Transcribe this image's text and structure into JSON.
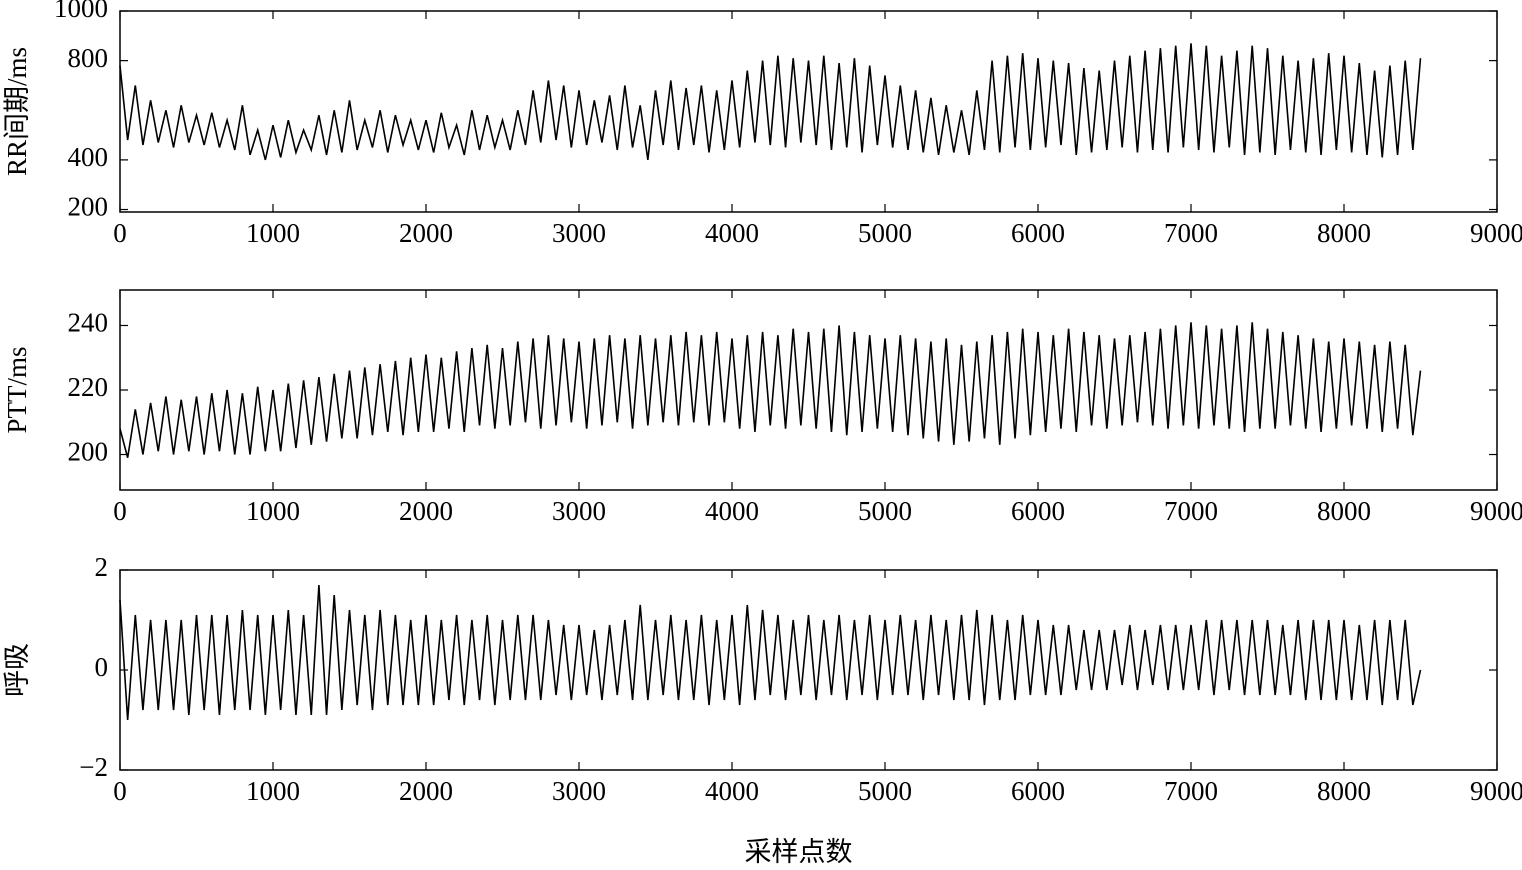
{
  "chart_data": [
    {
      "type": "line",
      "ylabel": "RR间期/ms",
      "color": "#000000",
      "x": [
        0,
        50,
        100,
        150,
        200,
        250,
        300,
        350,
        400,
        450,
        500,
        550,
        600,
        650,
        700,
        750,
        800,
        850,
        900,
        950,
        1000,
        1050,
        1100,
        1150,
        1200,
        1250,
        1300,
        1350,
        1400,
        1450,
        1500,
        1550,
        1600,
        1650,
        1700,
        1750,
        1800,
        1850,
        1900,
        1950,
        2000,
        2050,
        2100,
        2150,
        2200,
        2250,
        2300,
        2350,
        2400,
        2450,
        2500,
        2550,
        2600,
        2650,
        2700,
        2750,
        2800,
        2850,
        2900,
        2950,
        3000,
        3050,
        3100,
        3150,
        3200,
        3250,
        3300,
        3350,
        3400,
        3450,
        3500,
        3550,
        3600,
        3650,
        3700,
        3750,
        3800,
        3850,
        3900,
        3950,
        4000,
        4050,
        4100,
        4150,
        4200,
        4250,
        4300,
        4350,
        4400,
        4450,
        4500,
        4550,
        4600,
        4650,
        4700,
        4750,
        4800,
        4850,
        4900,
        4950,
        5000,
        5050,
        5100,
        5150,
        5200,
        5250,
        5300,
        5350,
        5400,
        5450,
        5500,
        5550,
        5600,
        5650,
        5700,
        5750,
        5800,
        5850,
        5900,
        5950,
        6000,
        6050,
        6100,
        6150,
        6200,
        6250,
        6300,
        6350,
        6400,
        6450,
        6500,
        6550,
        6600,
        6650,
        6700,
        6750,
        6800,
        6850,
        6900,
        6950,
        7000,
        7050,
        7100,
        7150,
        7200,
        7250,
        7300,
        7350,
        7400,
        7450,
        7500,
        7550,
        7600,
        7650,
        7700,
        7750,
        7800,
        7850,
        7900,
        7950,
        8000,
        8050,
        8100,
        8150,
        8200,
        8250,
        8300,
        8350,
        8400,
        8450,
        8500
      ],
      "values": [
        780,
        480,
        700,
        460,
        640,
        470,
        600,
        450,
        620,
        470,
        580,
        460,
        590,
        450,
        560,
        440,
        620,
        420,
        520,
        400,
        540,
        410,
        560,
        430,
        520,
        440,
        580,
        420,
        600,
        430,
        640,
        440,
        560,
        450,
        600,
        430,
        580,
        460,
        560,
        440,
        560,
        430,
        590,
        450,
        540,
        420,
        600,
        440,
        580,
        450,
        560,
        440,
        600,
        460,
        680,
        470,
        720,
        480,
        700,
        450,
        680,
        460,
        640,
        470,
        660,
        440,
        700,
        450,
        620,
        400,
        680,
        460,
        720,
        440,
        690,
        460,
        700,
        430,
        680,
        440,
        720,
        450,
        760,
        470,
        800,
        460,
        820,
        450,
        810,
        470,
        800,
        460,
        820,
        440,
        790,
        450,
        810,
        430,
        780,
        460,
        740,
        450,
        700,
        440,
        680,
        430,
        650,
        420,
        620,
        430,
        600,
        420,
        680,
        440,
        800,
        430,
        820,
        450,
        830,
        440,
        810,
        450,
        800,
        460,
        790,
        420,
        770,
        430,
        760,
        440,
        800,
        450,
        820,
        430,
        840,
        440,
        850,
        430,
        860,
        450,
        870,
        440,
        860,
        430,
        820,
        450,
        840,
        420,
        860,
        430,
        850,
        420,
        820,
        440,
        800,
        430,
        810,
        420,
        830,
        440,
        820,
        430,
        790,
        420,
        760,
        410,
        780,
        420,
        800,
        440,
        810
      ],
      "xlim": [
        0,
        9000
      ],
      "xticks": [
        0,
        1000,
        2000,
        3000,
        4000,
        5000,
        6000,
        7000,
        8000,
        9000
      ],
      "ylim": [
        190,
        1000
      ],
      "yticks": [
        200,
        400,
        800,
        1000
      ]
    },
    {
      "type": "line",
      "ylabel": "PTT/ms",
      "color": "#000000",
      "x": [
        0,
        50,
        100,
        150,
        200,
        250,
        300,
        350,
        400,
        450,
        500,
        550,
        600,
        650,
        700,
        750,
        800,
        850,
        900,
        950,
        1000,
        1050,
        1100,
        1150,
        1200,
        1250,
        1300,
        1350,
        1400,
        1450,
        1500,
        1550,
        1600,
        1650,
        1700,
        1750,
        1800,
        1850,
        1900,
        1950,
        2000,
        2050,
        2100,
        2150,
        2200,
        2250,
        2300,
        2350,
        2400,
        2450,
        2500,
        2550,
        2600,
        2650,
        2700,
        2750,
        2800,
        2850,
        2900,
        2950,
        3000,
        3050,
        3100,
        3150,
        3200,
        3250,
        3300,
        3350,
        3400,
        3450,
        3500,
        3550,
        3600,
        3650,
        3700,
        3750,
        3800,
        3850,
        3900,
        3950,
        4000,
        4050,
        4100,
        4150,
        4200,
        4250,
        4300,
        4350,
        4400,
        4450,
        4500,
        4550,
        4600,
        4650,
        4700,
        4750,
        4800,
        4850,
        4900,
        4950,
        5000,
        5050,
        5100,
        5150,
        5200,
        5250,
        5300,
        5350,
        5400,
        5450,
        5500,
        5550,
        5600,
        5650,
        5700,
        5750,
        5800,
        5850,
        5900,
        5950,
        6000,
        6050,
        6100,
        6150,
        6200,
        6250,
        6300,
        6350,
        6400,
        6450,
        6500,
        6550,
        6600,
        6650,
        6700,
        6750,
        6800,
        6850,
        6900,
        6950,
        7000,
        7050,
        7100,
        7150,
        7200,
        7250,
        7300,
        7350,
        7400,
        7450,
        7500,
        7550,
        7600,
        7650,
        7700,
        7750,
        7800,
        7850,
        7900,
        7950,
        8000,
        8050,
        8100,
        8150,
        8200,
        8250,
        8300,
        8350,
        8400,
        8450,
        8500
      ],
      "values": [
        208,
        199,
        214,
        200,
        216,
        201,
        218,
        200,
        217,
        201,
        218,
        200,
        219,
        201,
        220,
        200,
        219,
        200,
        221,
        201,
        220,
        201,
        222,
        202,
        223,
        203,
        224,
        204,
        225,
        205,
        226,
        205,
        227,
        206,
        228,
        207,
        229,
        206,
        230,
        207,
        231,
        207,
        230,
        208,
        232,
        207,
        233,
        209,
        234,
        208,
        233,
        209,
        235,
        210,
        236,
        208,
        237,
        209,
        236,
        210,
        235,
        208,
        236,
        209,
        237,
        210,
        236,
        208,
        237,
        209,
        236,
        210,
        237,
        209,
        238,
        210,
        237,
        209,
        238,
        210,
        236,
        208,
        237,
        207,
        238,
        209,
        237,
        208,
        239,
        209,
        238,
        208,
        239,
        207,
        240,
        206,
        238,
        207,
        237,
        208,
        236,
        207,
        237,
        206,
        236,
        205,
        235,
        204,
        236,
        203,
        234,
        204,
        235,
        205,
        237,
        203,
        238,
        205,
        239,
        206,
        238,
        207,
        237,
        208,
        239,
        207,
        238,
        209,
        237,
        208,
        236,
        209,
        237,
        210,
        238,
        209,
        239,
        208,
        240,
        209,
        241,
        208,
        240,
        209,
        239,
        208,
        240,
        207,
        241,
        208,
        239,
        208,
        238,
        209,
        237,
        208,
        236,
        207,
        235,
        208,
        236,
        209,
        235,
        208,
        234,
        207,
        235,
        208,
        234,
        206,
        226
      ],
      "xlim": [
        0,
        9000
      ],
      "xticks": [
        0,
        1000,
        2000,
        3000,
        4000,
        5000,
        6000,
        7000,
        8000,
        9000
      ],
      "ylim": [
        189,
        251
      ],
      "yticks": [
        200,
        220,
        240
      ]
    },
    {
      "type": "line",
      "ylabel": "呼吸",
      "xlabel": "采样点数",
      "color": "#000000",
      "x": [
        0,
        50,
        100,
        150,
        200,
        250,
        300,
        350,
        400,
        450,
        500,
        550,
        600,
        650,
        700,
        750,
        800,
        850,
        900,
        950,
        1000,
        1050,
        1100,
        1150,
        1200,
        1250,
        1300,
        1350,
        1400,
        1450,
        1500,
        1550,
        1600,
        1650,
        1700,
        1750,
        1800,
        1850,
        1900,
        1950,
        2000,
        2050,
        2100,
        2150,
        2200,
        2250,
        2300,
        2350,
        2400,
        2450,
        2500,
        2550,
        2600,
        2650,
        2700,
        2750,
        2800,
        2850,
        2900,
        2950,
        3000,
        3050,
        3100,
        3150,
        3200,
        3250,
        3300,
        3350,
        3400,
        3450,
        3500,
        3550,
        3600,
        3650,
        3700,
        3750,
        3800,
        3850,
        3900,
        3950,
        4000,
        4050,
        4100,
        4150,
        4200,
        4250,
        4300,
        4350,
        4400,
        4450,
        4500,
        4550,
        4600,
        4650,
        4700,
        4750,
        4800,
        4850,
        4900,
        4950,
        5000,
        5050,
        5100,
        5150,
        5200,
        5250,
        5300,
        5350,
        5400,
        5450,
        5500,
        5550,
        5600,
        5650,
        5700,
        5750,
        5800,
        5850,
        5900,
        5950,
        6000,
        6050,
        6100,
        6150,
        6200,
        6250,
        6300,
        6350,
        6400,
        6450,
        6500,
        6550,
        6600,
        6650,
        6700,
        6750,
        6800,
        6850,
        6900,
        6950,
        7000,
        7050,
        7100,
        7150,
        7200,
        7250,
        7300,
        7350,
        7400,
        7450,
        7500,
        7550,
        7600,
        7650,
        7700,
        7750,
        7800,
        7850,
        7900,
        7950,
        8000,
        8050,
        8100,
        8150,
        8200,
        8250,
        8300,
        8350,
        8400,
        8450,
        8500
      ],
      "values": [
        1.4,
        -1.0,
        1.1,
        -0.8,
        1.0,
        -0.8,
        1.0,
        -0.8,
        1.0,
        -0.9,
        1.1,
        -0.8,
        1.1,
        -0.9,
        1.1,
        -0.8,
        1.2,
        -0.8,
        1.1,
        -0.9,
        1.1,
        -0.8,
        1.2,
        -0.9,
        1.1,
        -0.9,
        1.7,
        -0.9,
        1.5,
        -0.8,
        1.2,
        -0.7,
        1.1,
        -0.8,
        1.2,
        -0.7,
        1.1,
        -0.7,
        1.0,
        -0.7,
        1.1,
        -0.7,
        1.0,
        -0.6,
        1.1,
        -0.7,
        1.0,
        -0.6,
        1.1,
        -0.7,
        1.0,
        -0.6,
        1.1,
        -0.6,
        1.1,
        -0.6,
        1.0,
        -0.5,
        0.9,
        -0.6,
        0.9,
        -0.5,
        0.8,
        -0.6,
        0.9,
        -0.5,
        1.0,
        -0.6,
        1.3,
        -0.6,
        1.0,
        -0.5,
        1.1,
        -0.6,
        1.0,
        -0.6,
        1.1,
        -0.7,
        1.0,
        -0.6,
        1.1,
        -0.7,
        1.3,
        -0.6,
        1.2,
        -0.5,
        1.1,
        -0.6,
        1.0,
        -0.5,
        1.1,
        -0.6,
        1.0,
        -0.5,
        1.1,
        -0.6,
        1.0,
        -0.5,
        1.1,
        -0.6,
        1.0,
        -0.5,
        1.1,
        -0.5,
        1.0,
        -0.6,
        1.1,
        -0.5,
        1.0,
        -0.6,
        1.1,
        -0.6,
        1.2,
        -0.7,
        1.1,
        -0.6,
        1.0,
        -0.6,
        1.1,
        -0.5,
        1.0,
        -0.5,
        0.9,
        -0.5,
        0.9,
        -0.4,
        0.8,
        -0.4,
        0.8,
        -0.4,
        0.8,
        -0.3,
        0.9,
        -0.4,
        0.8,
        -0.3,
        0.9,
        -0.4,
        0.9,
        -0.4,
        0.9,
        -0.4,
        1.0,
        -0.5,
        1.0,
        -0.4,
        1.0,
        -0.5,
        1.0,
        -0.5,
        1.0,
        -0.5,
        0.9,
        -0.5,
        1.0,
        -0.6,
        1.0,
        -0.6,
        1.0,
        -0.6,
        1.0,
        -0.6,
        0.9,
        -0.6,
        1.0,
        -0.7,
        1.0,
        -0.6,
        1.0,
        -0.7,
        0.0
      ],
      "xlim": [
        0,
        9000
      ],
      "xticks": [
        0,
        1000,
        2000,
        3000,
        4000,
        5000,
        6000,
        7000,
        8000,
        9000
      ],
      "ylim": [
        -2,
        2
      ],
      "yticks": [
        {
          "value": -2,
          "label": "−2"
        },
        0,
        {
          "value": 2,
          "label": "2"
        }
      ]
    }
  ]
}
